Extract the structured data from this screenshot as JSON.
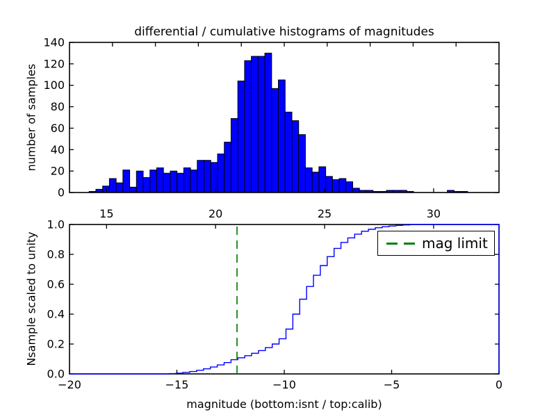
{
  "figure": {
    "title": "differential / cumulative histograms of magnitudes",
    "background": "#ffffff",
    "text_color": "#000000"
  },
  "legend": {
    "label": "mag limit",
    "dash_color": "#008000",
    "position": "upper right"
  },
  "chart_data": [
    {
      "type": "bar",
      "id": "differential-histogram",
      "ylabel": "number of samples",
      "xlim": [
        13.3,
        33.0
      ],
      "ylim": [
        0,
        140
      ],
      "xticks": {
        "values": [
          15,
          20,
          25,
          30
        ],
        "labels": [
          "15",
          "20",
          "25",
          "30"
        ]
      },
      "yticks": {
        "values": [
          0,
          20,
          40,
          60,
          80,
          100,
          120,
          140
        ],
        "labels": [
          "0",
          "20",
          "40",
          "60",
          "80",
          "100",
          "120",
          "140"
        ]
      },
      "top_spine_ticks": {
        "scale": "isnt",
        "values": [
          -18,
          -16,
          -14,
          -12,
          -10,
          -8,
          -6,
          -4,
          -2
        ]
      },
      "bar_fill": "#0000ff",
      "bar_edge": "#000000",
      "bin_start": 14.2,
      "bin_width": 0.31,
      "counts": [
        1,
        3,
        6,
        13,
        9,
        21,
        5,
        20,
        14,
        21,
        23,
        18,
        20,
        18,
        23,
        21,
        30,
        30,
        28,
        36,
        47,
        69,
        104,
        123,
        127,
        127,
        130,
        97,
        105,
        75,
        67,
        54,
        23,
        19,
        24,
        15,
        12,
        13,
        10,
        4,
        2,
        2,
        1,
        1,
        2,
        2,
        2,
        1,
        0,
        0,
        0,
        0,
        0,
        2,
        1,
        1
      ],
      "grid": false
    },
    {
      "type": "line",
      "id": "cumulative-histogram",
      "style": "step",
      "ylabel": "Nsample scaled to unity",
      "xlabel": "magnitude (bottom:isnt / top:calib)",
      "xlim": [
        -20,
        0
      ],
      "ylim": [
        0.0,
        1.0
      ],
      "xticks": {
        "values": [
          -20,
          -15,
          -10,
          -5,
          0
        ],
        "labels": [
          "−20",
          "−15",
          "−10",
          "−5",
          "0"
        ]
      },
      "yticks": {
        "values": [
          0.0,
          0.2,
          0.4,
          0.6,
          0.8,
          1.0
        ],
        "labels": [
          "0.0",
          "0.2",
          "0.4",
          "0.6",
          "0.8",
          "1.0"
        ]
      },
      "top_spine_ticks": {
        "scale": "calib",
        "values": [
          15,
          20,
          25,
          30
        ]
      },
      "line_color": "#0000ff",
      "step": {
        "edges": [
          -15.36,
          -15.04,
          -14.72,
          -14.4,
          -14.08,
          -13.76,
          -13.44,
          -13.12,
          -12.8,
          -12.48,
          -12.16,
          -11.84,
          -11.52,
          -11.2,
          -10.88,
          -10.56,
          -10.24,
          -9.92,
          -9.6,
          -9.28,
          -8.96,
          -8.64,
          -8.32,
          -8.0,
          -7.68,
          -7.36,
          -7.04,
          -6.72,
          -6.4,
          -6.08,
          -5.76,
          -5.44,
          -5.12,
          -4.8,
          -4.48,
          -4.16,
          -3.84
        ],
        "cumulative": [
          0.002,
          0.005,
          0.01,
          0.016,
          0.024,
          0.034,
          0.046,
          0.06,
          0.076,
          0.095,
          0.108,
          0.122,
          0.138,
          0.156,
          0.176,
          0.2,
          0.235,
          0.3,
          0.4,
          0.5,
          0.585,
          0.66,
          0.725,
          0.785,
          0.84,
          0.88,
          0.91,
          0.935,
          0.955,
          0.968,
          0.978,
          0.985,
          0.99,
          0.994,
          0.997,
          1.0
        ],
        "plateau_to_x": 0,
        "drop_to_zero_at_x": 0
      },
      "vline": {
        "x": -12.2,
        "color": "#008000",
        "style": "dashed",
        "label": "mag limit"
      },
      "legend": {
        "label": "mag limit"
      },
      "grid": false
    }
  ]
}
